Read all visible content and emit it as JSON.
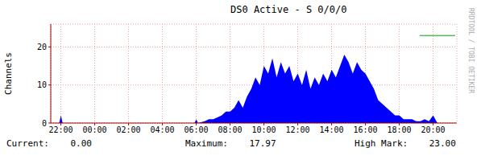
{
  "chart_data": {
    "type": "area",
    "title": "DS0 Active - S 0/0/0",
    "y_label": "Channels",
    "side_text": "RRDTOOL / TOBI OETIKER",
    "color": "#0000ff",
    "grid": true,
    "x": [
      21.5,
      21.9,
      22.0,
      22.1,
      29.9,
      30.0,
      30.1,
      30.5,
      30.75,
      31,
      31.25,
      31.5,
      31.75,
      32,
      32.25,
      32.5,
      32.75,
      33,
      33.25,
      33.5,
      33.75,
      34,
      34.25,
      34.5,
      34.75,
      35,
      35.25,
      35.5,
      35.75,
      36,
      36.25,
      36.5,
      36.75,
      37,
      37.25,
      37.5,
      37.75,
      38,
      38.25,
      38.5,
      38.75,
      39,
      39.25,
      39.5,
      39.75,
      40,
      40.25,
      40.5,
      40.75,
      41,
      41.25,
      41.5,
      41.75,
      42,
      42.25,
      42.5,
      42.75,
      43,
      43.25,
      43.5,
      43.75,
      44,
      44.25,
      45.3
    ],
    "values": [
      0,
      0,
      2,
      0,
      0,
      1,
      0,
      0.5,
      1,
      1,
      1.5,
      2,
      3,
      3,
      4,
      6,
      4,
      7,
      9,
      12,
      10,
      15,
      13,
      17,
      12,
      16,
      13,
      15,
      11,
      13,
      10,
      14,
      9,
      12,
      10,
      13,
      11,
      14,
      12,
      15,
      17.97,
      16,
      13,
      16,
      14,
      13,
      11,
      9,
      6,
      5,
      4,
      3,
      2,
      2,
      1,
      1,
      1,
      0.5,
      0.5,
      1,
      0.5,
      2,
      0,
      0
    ],
    "xlim": [
      21.4,
      45.4
    ],
    "xticks": [
      {
        "value": 22,
        "label": "22:00"
      },
      {
        "value": 24,
        "label": "00:00"
      },
      {
        "value": 26,
        "label": "02:00"
      },
      {
        "value": 28,
        "label": "04:00"
      },
      {
        "value": 30,
        "label": "06:00"
      },
      {
        "value": 32,
        "label": "08:00"
      },
      {
        "value": 34,
        "label": "10:00"
      },
      {
        "value": 36,
        "label": "12:00"
      },
      {
        "value": 38,
        "label": "14:00"
      },
      {
        "value": 40,
        "label": "16:00"
      },
      {
        "value": 42,
        "label": "18:00"
      },
      {
        "value": 44,
        "label": "20:00"
      }
    ],
    "ylim": [
      0,
      26
    ],
    "yticks": [
      0,
      10,
      20
    ],
    "stats": [
      {
        "label": "Current:",
        "value": 0,
        "text": "0.00"
      },
      {
        "label": "Maximum:",
        "value": 17.97,
        "text": "17.97"
      },
      {
        "label": "High Mark:",
        "value": 23,
        "text": "23.00"
      }
    ],
    "high_mark_x": [
      43.2,
      45.3
    ],
    "high_mark_color": "#00a000"
  }
}
